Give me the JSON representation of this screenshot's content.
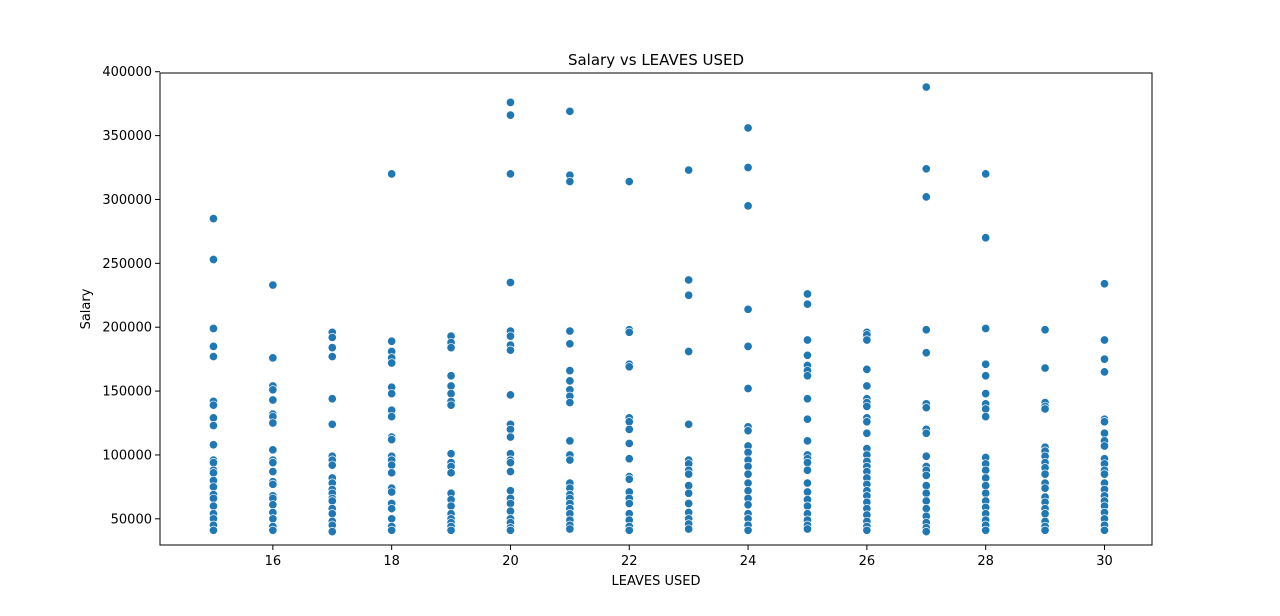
{
  "chart_data": {
    "type": "scatter",
    "title": "Salary vs LEAVES USED",
    "xlabel": "LEAVES USED",
    "ylabel": "Salary",
    "xlim": [
      14.1,
      30.8
    ],
    "ylim": [
      29500,
      399000
    ],
    "xticks": [
      16,
      18,
      20,
      22,
      24,
      26,
      28,
      30
    ],
    "yticks": [
      50000,
      100000,
      150000,
      200000,
      250000,
      300000,
      350000,
      400000
    ],
    "grid": false,
    "legend": "none",
    "marker_color": "#1f77b4",
    "points": [
      [
        15,
        285000
      ],
      [
        15,
        253000
      ],
      [
        15,
        199000
      ],
      [
        15,
        185000
      ],
      [
        15,
        177000
      ],
      [
        15,
        142000
      ],
      [
        15,
        139000
      ],
      [
        15,
        129000
      ],
      [
        15,
        123000
      ],
      [
        15,
        108000
      ],
      [
        15,
        96000
      ],
      [
        15,
        94000
      ],
      [
        15,
        88000
      ],
      [
        15,
        86000
      ],
      [
        15,
        80000
      ],
      [
        15,
        75000
      ],
      [
        15,
        69000
      ],
      [
        15,
        66000
      ],
      [
        15,
        60000
      ],
      [
        15,
        54000
      ],
      [
        15,
        50000
      ],
      [
        15,
        45000
      ],
      [
        15,
        41000
      ],
      [
        16,
        233000
      ],
      [
        16,
        176000
      ],
      [
        16,
        154000
      ],
      [
        16,
        151000
      ],
      [
        16,
        143000
      ],
      [
        16,
        132000
      ],
      [
        16,
        130000
      ],
      [
        16,
        125000
      ],
      [
        16,
        104000
      ],
      [
        16,
        96000
      ],
      [
        16,
        94000
      ],
      [
        16,
        87000
      ],
      [
        16,
        79000
      ],
      [
        16,
        77000
      ],
      [
        16,
        68000
      ],
      [
        16,
        66000
      ],
      [
        16,
        61000
      ],
      [
        16,
        55000
      ],
      [
        16,
        50000
      ],
      [
        16,
        44000
      ],
      [
        16,
        41000
      ],
      [
        17,
        196000
      ],
      [
        17,
        192000
      ],
      [
        17,
        184000
      ],
      [
        17,
        177000
      ],
      [
        17,
        144000
      ],
      [
        17,
        124000
      ],
      [
        17,
        99000
      ],
      [
        17,
        96000
      ],
      [
        17,
        92000
      ],
      [
        17,
        82000
      ],
      [
        17,
        78000
      ],
      [
        17,
        73000
      ],
      [
        17,
        70000
      ],
      [
        17,
        66000
      ],
      [
        17,
        64000
      ],
      [
        17,
        58000
      ],
      [
        17,
        54000
      ],
      [
        17,
        48000
      ],
      [
        17,
        45000
      ],
      [
        17,
        40000
      ],
      [
        18,
        320000
      ],
      [
        18,
        189000
      ],
      [
        18,
        181000
      ],
      [
        18,
        176000
      ],
      [
        18,
        172000
      ],
      [
        18,
        153000
      ],
      [
        18,
        148000
      ],
      [
        18,
        135000
      ],
      [
        18,
        130000
      ],
      [
        18,
        114000
      ],
      [
        18,
        112000
      ],
      [
        18,
        99000
      ],
      [
        18,
        96000
      ],
      [
        18,
        92000
      ],
      [
        18,
        86000
      ],
      [
        18,
        74000
      ],
      [
        18,
        71000
      ],
      [
        18,
        62000
      ],
      [
        18,
        58000
      ],
      [
        18,
        50000
      ],
      [
        18,
        44000
      ],
      [
        18,
        41000
      ],
      [
        19,
        193000
      ],
      [
        19,
        188000
      ],
      [
        19,
        184000
      ],
      [
        19,
        162000
      ],
      [
        19,
        154000
      ],
      [
        19,
        148000
      ],
      [
        19,
        142000
      ],
      [
        19,
        139000
      ],
      [
        19,
        101000
      ],
      [
        19,
        94000
      ],
      [
        19,
        91000
      ],
      [
        19,
        86000
      ],
      [
        19,
        70000
      ],
      [
        19,
        65000
      ],
      [
        19,
        60000
      ],
      [
        19,
        54000
      ],
      [
        19,
        50000
      ],
      [
        19,
        47000
      ],
      [
        19,
        44000
      ],
      [
        19,
        41000
      ],
      [
        20,
        376000
      ],
      [
        20,
        366000
      ],
      [
        20,
        320000
      ],
      [
        20,
        235000
      ],
      [
        20,
        197000
      ],
      [
        20,
        193000
      ],
      [
        20,
        186000
      ],
      [
        20,
        182000
      ],
      [
        20,
        147000
      ],
      [
        20,
        124000
      ],
      [
        20,
        120000
      ],
      [
        20,
        114000
      ],
      [
        20,
        101000
      ],
      [
        20,
        96000
      ],
      [
        20,
        94000
      ],
      [
        20,
        87000
      ],
      [
        20,
        72000
      ],
      [
        20,
        66000
      ],
      [
        20,
        62000
      ],
      [
        20,
        56000
      ],
      [
        20,
        50000
      ],
      [
        20,
        47000
      ],
      [
        20,
        43000
      ],
      [
        20,
        41000
      ],
      [
        21,
        369000
      ],
      [
        21,
        319000
      ],
      [
        21,
        314000
      ],
      [
        21,
        197000
      ],
      [
        21,
        187000
      ],
      [
        21,
        166000
      ],
      [
        21,
        158000
      ],
      [
        21,
        151000
      ],
      [
        21,
        146000
      ],
      [
        21,
        141000
      ],
      [
        21,
        111000
      ],
      [
        21,
        100000
      ],
      [
        21,
        96000
      ],
      [
        21,
        78000
      ],
      [
        21,
        74000
      ],
      [
        21,
        69000
      ],
      [
        21,
        66000
      ],
      [
        21,
        62000
      ],
      [
        21,
        58000
      ],
      [
        21,
        54000
      ],
      [
        21,
        49000
      ],
      [
        21,
        45000
      ],
      [
        21,
        42000
      ],
      [
        22,
        314000
      ],
      [
        22,
        198000
      ],
      [
        22,
        196000
      ],
      [
        22,
        171000
      ],
      [
        22,
        169000
      ],
      [
        22,
        129000
      ],
      [
        22,
        126000
      ],
      [
        22,
        120000
      ],
      [
        22,
        109000
      ],
      [
        22,
        97000
      ],
      [
        22,
        83000
      ],
      [
        22,
        81000
      ],
      [
        22,
        71000
      ],
      [
        22,
        66000
      ],
      [
        22,
        62000
      ],
      [
        22,
        54000
      ],
      [
        22,
        49000
      ],
      [
        22,
        44000
      ],
      [
        22,
        41000
      ],
      [
        23,
        323000
      ],
      [
        23,
        237000
      ],
      [
        23,
        225000
      ],
      [
        23,
        181000
      ],
      [
        23,
        124000
      ],
      [
        23,
        96000
      ],
      [
        23,
        93000
      ],
      [
        23,
        88000
      ],
      [
        23,
        85000
      ],
      [
        23,
        76000
      ],
      [
        23,
        70000
      ],
      [
        23,
        62000
      ],
      [
        23,
        55000
      ],
      [
        23,
        50000
      ],
      [
        23,
        46000
      ],
      [
        23,
        42000
      ],
      [
        24,
        356000
      ],
      [
        24,
        325000
      ],
      [
        24,
        295000
      ],
      [
        24,
        214000
      ],
      [
        24,
        185000
      ],
      [
        24,
        152000
      ],
      [
        24,
        122000
      ],
      [
        24,
        119000
      ],
      [
        24,
        107000
      ],
      [
        24,
        102000
      ],
      [
        24,
        96000
      ],
      [
        24,
        91000
      ],
      [
        24,
        85000
      ],
      [
        24,
        78000
      ],
      [
        24,
        72000
      ],
      [
        24,
        66000
      ],
      [
        24,
        61000
      ],
      [
        24,
        54000
      ],
      [
        24,
        50000
      ],
      [
        24,
        45000
      ],
      [
        24,
        41000
      ],
      [
        25,
        226000
      ],
      [
        25,
        218000
      ],
      [
        25,
        190000
      ],
      [
        25,
        178000
      ],
      [
        25,
        170000
      ],
      [
        25,
        166000
      ],
      [
        25,
        162000
      ],
      [
        25,
        144000
      ],
      [
        25,
        128000
      ],
      [
        25,
        111000
      ],
      [
        25,
        100000
      ],
      [
        25,
        97000
      ],
      [
        25,
        94000
      ],
      [
        25,
        88000
      ],
      [
        25,
        78000
      ],
      [
        25,
        71000
      ],
      [
        25,
        65000
      ],
      [
        25,
        60000
      ],
      [
        25,
        54000
      ],
      [
        25,
        49000
      ],
      [
        25,
        45000
      ],
      [
        25,
        42000
      ],
      [
        26,
        196000
      ],
      [
        26,
        194000
      ],
      [
        26,
        190000
      ],
      [
        26,
        167000
      ],
      [
        26,
        154000
      ],
      [
        26,
        144000
      ],
      [
        26,
        141000
      ],
      [
        26,
        138000
      ],
      [
        26,
        129000
      ],
      [
        26,
        126000
      ],
      [
        26,
        117000
      ],
      [
        26,
        105000
      ],
      [
        26,
        100000
      ],
      [
        26,
        95000
      ],
      [
        26,
        91000
      ],
      [
        26,
        87000
      ],
      [
        26,
        82000
      ],
      [
        26,
        77000
      ],
      [
        26,
        72000
      ],
      [
        26,
        68000
      ],
      [
        26,
        63000
      ],
      [
        26,
        58000
      ],
      [
        26,
        53000
      ],
      [
        26,
        48000
      ],
      [
        26,
        44000
      ],
      [
        26,
        41000
      ],
      [
        27,
        388000
      ],
      [
        27,
        324000
      ],
      [
        27,
        302000
      ],
      [
        27,
        198000
      ],
      [
        27,
        180000
      ],
      [
        27,
        140000
      ],
      [
        27,
        137000
      ],
      [
        27,
        120000
      ],
      [
        27,
        117000
      ],
      [
        27,
        99000
      ],
      [
        27,
        91000
      ],
      [
        27,
        88000
      ],
      [
        27,
        84000
      ],
      [
        27,
        76000
      ],
      [
        27,
        70000
      ],
      [
        27,
        64000
      ],
      [
        27,
        58000
      ],
      [
        27,
        52000
      ],
      [
        27,
        47000
      ],
      [
        27,
        43000
      ],
      [
        27,
        40000
      ],
      [
        28,
        320000
      ],
      [
        28,
        270000
      ],
      [
        28,
        199000
      ],
      [
        28,
        171000
      ],
      [
        28,
        162000
      ],
      [
        28,
        148000
      ],
      [
        28,
        140000
      ],
      [
        28,
        136000
      ],
      [
        28,
        130000
      ],
      [
        28,
        98000
      ],
      [
        28,
        93000
      ],
      [
        28,
        88000
      ],
      [
        28,
        82000
      ],
      [
        28,
        76000
      ],
      [
        28,
        70000
      ],
      [
        28,
        64000
      ],
      [
        28,
        59000
      ],
      [
        28,
        54000
      ],
      [
        28,
        49000
      ],
      [
        28,
        45000
      ],
      [
        28,
        41000
      ],
      [
        29,
        198000
      ],
      [
        29,
        168000
      ],
      [
        29,
        141000
      ],
      [
        29,
        138000
      ],
      [
        29,
        136000
      ],
      [
        29,
        106000
      ],
      [
        29,
        103000
      ],
      [
        29,
        99000
      ],
      [
        29,
        94000
      ],
      [
        29,
        90000
      ],
      [
        29,
        85000
      ],
      [
        29,
        78000
      ],
      [
        29,
        74000
      ],
      [
        29,
        67000
      ],
      [
        29,
        63000
      ],
      [
        29,
        58000
      ],
      [
        29,
        54000
      ],
      [
        29,
        48000
      ],
      [
        29,
        44000
      ],
      [
        29,
        41000
      ],
      [
        30,
        234000
      ],
      [
        30,
        190000
      ],
      [
        30,
        175000
      ],
      [
        30,
        165000
      ],
      [
        30,
        128000
      ],
      [
        30,
        126000
      ],
      [
        30,
        117000
      ],
      [
        30,
        111000
      ],
      [
        30,
        107000
      ],
      [
        30,
        97000
      ],
      [
        30,
        93000
      ],
      [
        30,
        88000
      ],
      [
        30,
        85000
      ],
      [
        30,
        78000
      ],
      [
        30,
        73000
      ],
      [
        30,
        68000
      ],
      [
        30,
        64000
      ],
      [
        30,
        60000
      ],
      [
        30,
        55000
      ],
      [
        30,
        50000
      ],
      [
        30,
        45000
      ],
      [
        30,
        41000
      ]
    ]
  }
}
